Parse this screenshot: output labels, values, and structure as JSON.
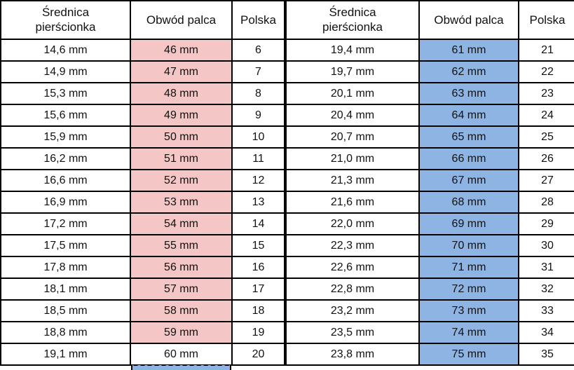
{
  "chart_data": {
    "type": "table",
    "columns": [
      "Średnica pierścionka",
      "Obwód palca",
      "Polska"
    ],
    "left_rows": [
      [
        "14,6 mm",
        "46 mm",
        "6"
      ],
      [
        "14,9 mm",
        "47 mm",
        "7"
      ],
      [
        "15,3 mm",
        "48 mm",
        "8"
      ],
      [
        "15,6 mm",
        "49 mm",
        "9"
      ],
      [
        "15,9 mm",
        "50 mm",
        "10"
      ],
      [
        "16,2 mm",
        "51 mm",
        "11"
      ],
      [
        "16,6 mm",
        "52 mm",
        "12"
      ],
      [
        "16,9 mm",
        "53 mm",
        "13"
      ],
      [
        "17,2 mm",
        "54 mm",
        "14"
      ],
      [
        "17,5 mm",
        "55 mm",
        "15"
      ],
      [
        "17,8 mm",
        "56 mm",
        "16"
      ],
      [
        "18,1 mm",
        "57 mm",
        "17"
      ],
      [
        "18,5 mm",
        "58 mm",
        "18"
      ],
      [
        "18,8 mm",
        "59 mm",
        "19"
      ],
      [
        "19,1 mm",
        "60 mm",
        "20"
      ]
    ],
    "right_rows": [
      [
        "19,4 mm",
        "61 mm",
        "21"
      ],
      [
        "19,7 mm",
        "62 mm",
        "22"
      ],
      [
        "20,1 mm",
        "63 mm",
        "23"
      ],
      [
        "20,4 mm",
        "64 mm",
        "24"
      ],
      [
        "20,7 mm",
        "65 mm",
        "25"
      ],
      [
        "21,0 mm",
        "66 mm",
        "26"
      ],
      [
        "21,3 mm",
        "67 mm",
        "27"
      ],
      [
        "21,6 mm",
        "68 mm",
        "28"
      ],
      [
        "22,0 mm",
        "69 mm",
        "29"
      ],
      [
        "22,3 mm",
        "70 mm",
        "30"
      ],
      [
        "22,6 mm",
        "71 mm",
        "31"
      ],
      [
        "22,8 mm",
        "72 mm",
        "32"
      ],
      [
        "23,2 mm",
        "73 mm",
        "33"
      ],
      [
        "23,5 mm",
        "74 mm",
        "34"
      ],
      [
        "23,8 mm",
        "75 mm",
        "35"
      ]
    ],
    "left_plain_rows": [
      14
    ],
    "selection": {
      "table": "left",
      "row_index": 14,
      "style": "dashed"
    }
  },
  "colors": {
    "pink_highlight": "#f5c6c6",
    "blue_highlight": "#8db4e2",
    "border": "#000000",
    "background": "#ffffff"
  }
}
